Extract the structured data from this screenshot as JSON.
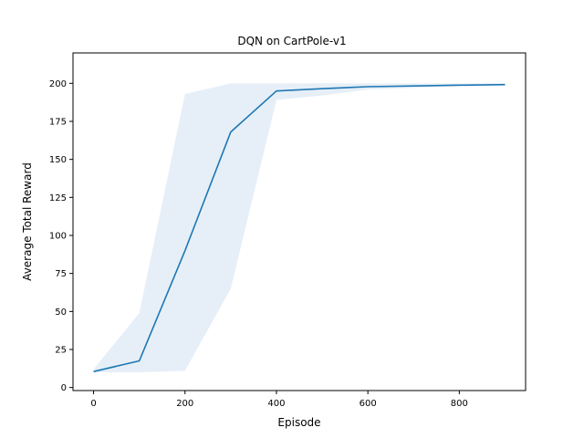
{
  "chart_data": {
    "type": "line",
    "title": "DQN on CartPole-v1",
    "xlabel": "Episode",
    "ylabel": "Average Total Reward",
    "xlim": [
      -45,
      945
    ],
    "ylim": [
      -2,
      220
    ],
    "xticks": [
      0,
      200,
      400,
      600,
      800
    ],
    "yticks": [
      0,
      25,
      50,
      75,
      100,
      125,
      150,
      175,
      200
    ],
    "grid": false,
    "legend": "none",
    "series": [
      {
        "x": [
          0,
          100,
          200,
          300,
          400,
          500,
          600,
          700,
          800,
          900
        ],
        "values": [
          10.5,
          17.5,
          90,
          168,
          195,
          196.5,
          197.8,
          198.3,
          198.8,
          199.2
        ],
        "lower": [
          10,
          10,
          11,
          65,
          189,
          192,
          196,
          197,
          198,
          198.5
        ],
        "upper": [
          12,
          49,
          193,
          200,
          200,
          200,
          200,
          200,
          200,
          200
        ],
        "color": "#1f77b4",
        "band_color": "#e6eff7"
      }
    ]
  }
}
